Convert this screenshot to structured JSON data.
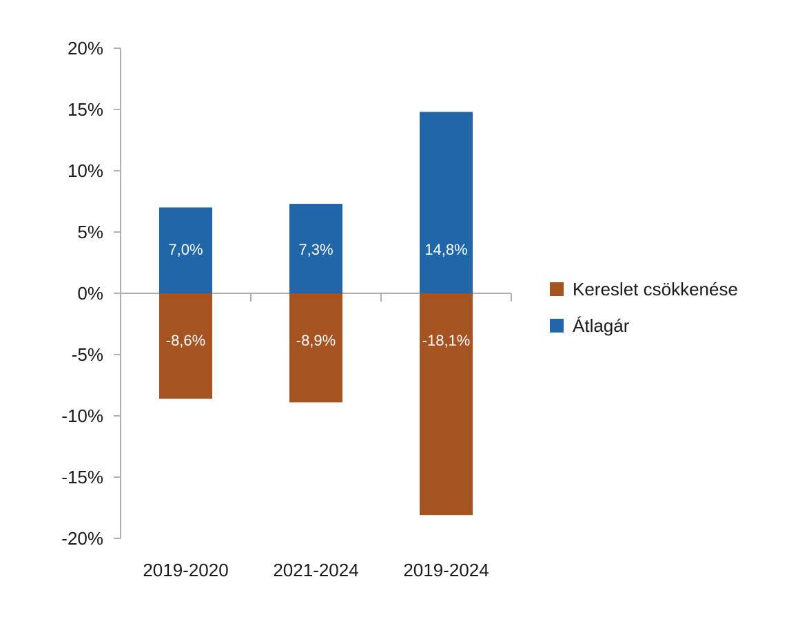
{
  "chart_data": {
    "type": "bar",
    "categories": [
      "2019-2020",
      "2021-2024",
      "2019-2024"
    ],
    "series": [
      {
        "name": "Kereslet csökkenése",
        "values": [
          -8.6,
          -8.9,
          -18.1
        ],
        "labels": [
          "-8,6%",
          "-8,9%",
          "-18,1%"
        ],
        "color": "#a65322"
      },
      {
        "name": "Átlagár",
        "values": [
          7.0,
          7.3,
          14.8
        ],
        "labels": [
          "7,0%",
          "7,3%",
          "14,8%"
        ],
        "color": "#2166a9"
      }
    ],
    "ylim": [
      -20,
      20
    ],
    "yticks": [
      20,
      15,
      10,
      5,
      0,
      -5,
      -10,
      -15,
      -20
    ],
    "ytick_labels": [
      "20%",
      "15%",
      "10%",
      "5%",
      "0%",
      "-5%",
      "-10%",
      "-15%",
      "-20%"
    ],
    "title": "",
    "xlabel": "",
    "ylabel": "",
    "grid": false,
    "legend_position": "right"
  }
}
